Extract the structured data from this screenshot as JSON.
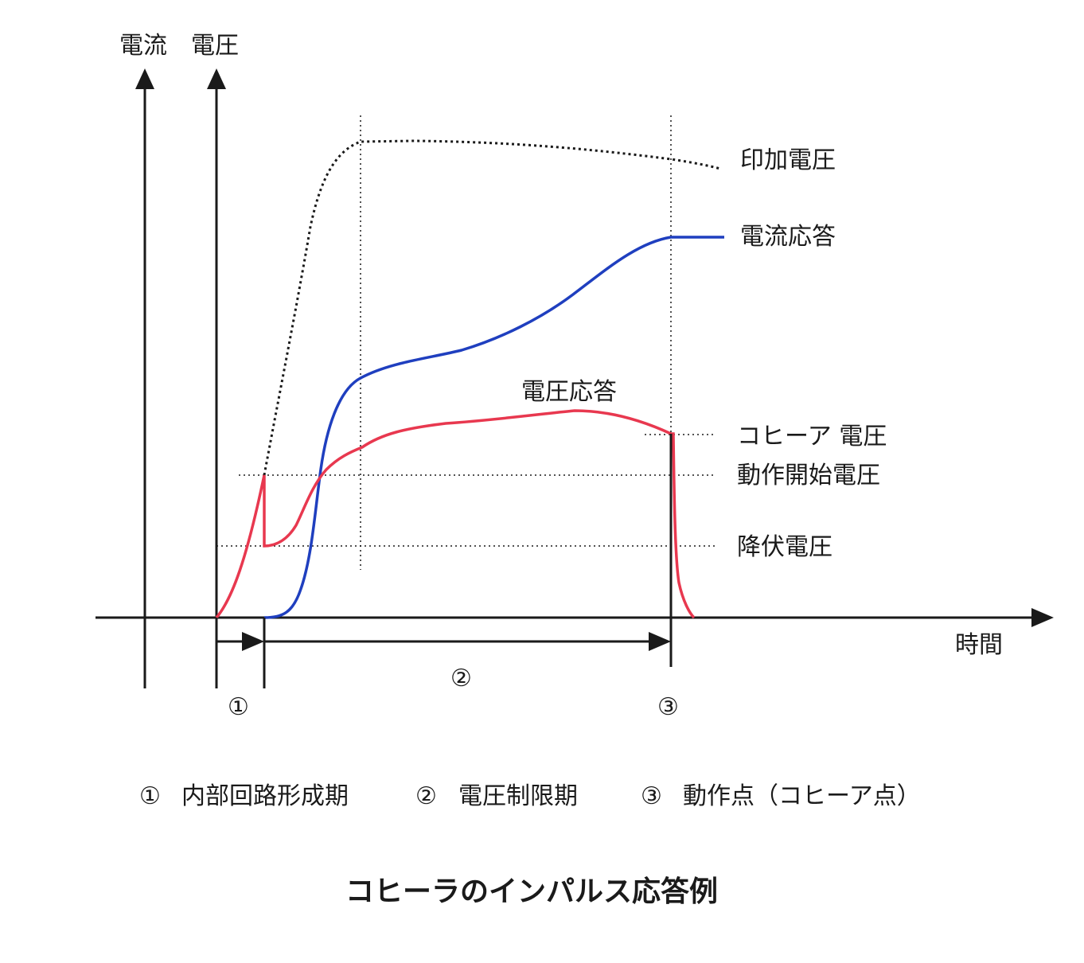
{
  "axes": {
    "y_current_label": "電流",
    "y_voltage_label": "電圧",
    "x_label": "時間"
  },
  "curves": {
    "applied_voltage": {
      "label": "印加電圧",
      "color": "#1a1a1a"
    },
    "current_response": {
      "label": "電流応答",
      "color": "#1f3fbf"
    },
    "voltage_response": {
      "label": "電圧応答",
      "color": "#e8384f"
    }
  },
  "levels": {
    "coherer_voltage": "コヒーア 電圧",
    "operation_start_voltage": "動作開始電圧",
    "breakdown_voltage": "降伏電圧"
  },
  "phases": {
    "marker_1": "①",
    "marker_2": "②",
    "marker_3": "③"
  },
  "legend": [
    {
      "num": "①",
      "text": "内部回路形成期"
    },
    {
      "num": "②",
      "text": "電圧制限期"
    },
    {
      "num": "③",
      "text": "動作点（コヒーア点）"
    }
  ],
  "caption": "コヒーラのインパルス応答例"
}
